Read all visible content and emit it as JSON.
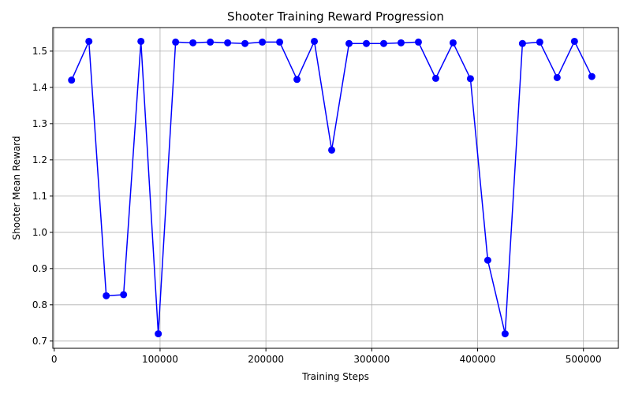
{
  "chart_data": {
    "type": "line",
    "title": "Shooter Training Reward Progression",
    "xlabel": "Training Steps",
    "ylabel": "Shooter Mean Reward",
    "xlim": [
      -1300,
      533000
    ],
    "ylim": [
      0.68,
      1.565
    ],
    "xticks": [
      0,
      100000,
      200000,
      300000,
      400000,
      500000
    ],
    "yticks": [
      0.7,
      0.8,
      0.9,
      1.0,
      1.1,
      1.2,
      1.3,
      1.4,
      1.5
    ],
    "ytick_format": 1,
    "grid": true,
    "series": [
      {
        "color": "#0000ff",
        "marker": "circle",
        "x": [
          16384,
          32768,
          49152,
          65536,
          81920,
          98304,
          114688,
          131072,
          147456,
          163840,
          180224,
          196608,
          212992,
          229376,
          245760,
          262144,
          278528,
          294912,
          311296,
          327680,
          344064,
          360448,
          376832,
          393216,
          409600,
          425984,
          442368,
          458752,
          475136,
          491520,
          507904
        ],
        "y": [
          1.42,
          1.527,
          0.825,
          0.828,
          1.527,
          0.72,
          1.525,
          1.523,
          1.525,
          1.523,
          1.521,
          1.525,
          1.525,
          1.422,
          1.527,
          1.227,
          1.521,
          1.521,
          1.521,
          1.523,
          1.525,
          1.425,
          1.523,
          1.424,
          0.923,
          0.72,
          1.521,
          1.525,
          1.427,
          1.527,
          1.43
        ]
      }
    ]
  }
}
